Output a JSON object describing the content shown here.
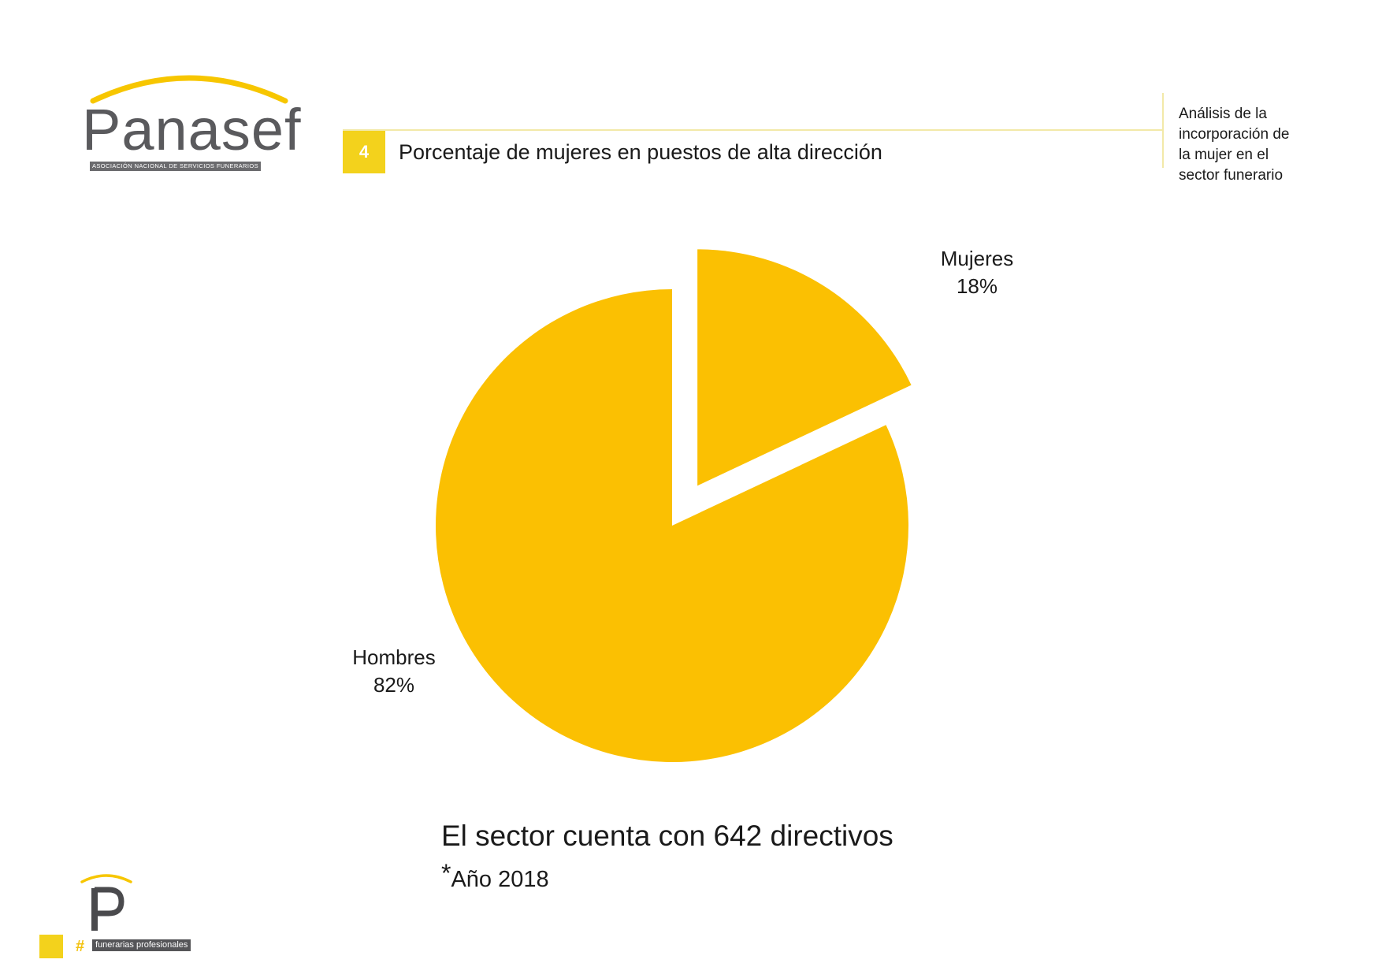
{
  "logo": {
    "name": "Panasef",
    "subtitle": "ASOCIACIÓN NACIONAL DE SERVICIOS FUNERARIOS"
  },
  "header": {
    "section_number": "4",
    "title": "Porcentaje de mujeres en puestos de alta dirección"
  },
  "side_note": {
    "lines": [
      "Análisis de la",
      "incorporación de",
      "la mujer en el",
      "sector funerario"
    ]
  },
  "chart_data": {
    "type": "pie",
    "title": "",
    "slices": [
      {
        "label": "Mujeres",
        "value": 18,
        "value_label": "18%",
        "exploded": true
      },
      {
        "label": "Hombres",
        "value": 82,
        "value_label": "82%",
        "exploded": false
      }
    ],
    "colors": {
      "slice": "#FBC002"
    },
    "legend": "none"
  },
  "footer": {
    "total": "El sector cuenta con 642 directivos",
    "year_asterisk": "*",
    "year": "Año 2018"
  },
  "brand": {
    "hash": "#",
    "tagline": "funerarias profesionales"
  },
  "colors": {
    "accent": "#F3D21C",
    "slice": "#FBC002",
    "logo_grey": "#5A5A5D"
  }
}
